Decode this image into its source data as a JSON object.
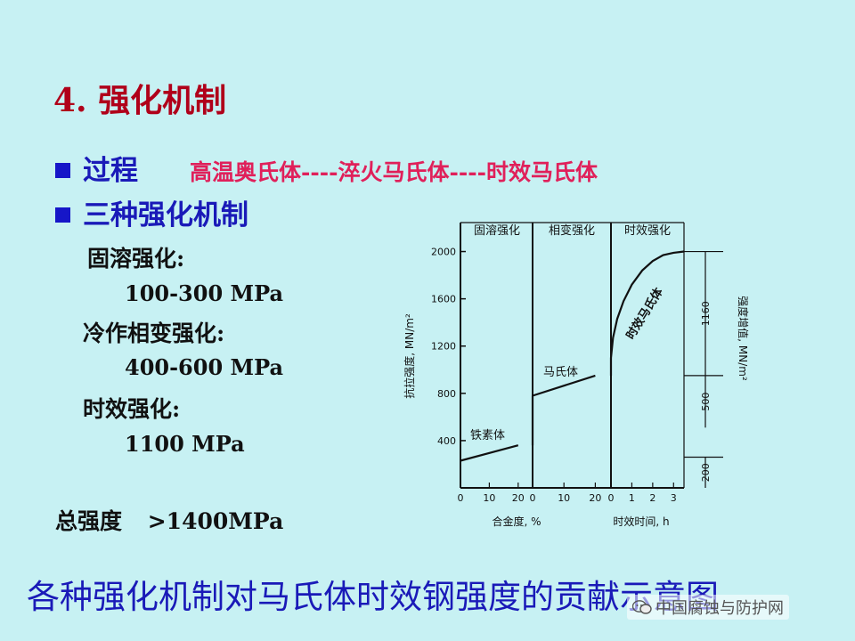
{
  "slide": {
    "title": "4. 强化机制",
    "process_label": "过程",
    "process_value": "高温奥氏体----淬火马氏体----时效马氏体",
    "mechanisms_label": "三种强化机制",
    "mechanisms": [
      {
        "name": "固溶强化:",
        "value": "100-300 MPa"
      },
      {
        "name": "冷作相变强化:",
        "value": "400-600 MPa"
      },
      {
        "name": "时效强化:",
        "value": "1100 MPa"
      }
    ],
    "total_label": "总强度",
    "total_value": ">1400MPa",
    "caption": "各种强化机制对马氏体时效钢强度的贡献示意图",
    "watermark": "中国腐蚀与防护网",
    "colors": {
      "background": "#c7f1f3",
      "title": "#b0001a",
      "bullet": "#1616c8",
      "process": "#e0205a"
    }
  },
  "chart_data": {
    "type": "line",
    "sections": [
      {
        "label": "固溶强化",
        "xlabel": "合金度, %",
        "x_ticks": [
          "0",
          "10",
          "20"
        ]
      },
      {
        "label": "相变强化",
        "xlabel": "",
        "x_ticks": [
          "0",
          "10",
          "20"
        ]
      },
      {
        "label": "时效强化",
        "xlabel": "时效时间, h",
        "x_ticks": [
          "0",
          "1",
          "2",
          "3"
        ]
      }
    ],
    "ylabel": "抗拉强度, MN/m²",
    "y_ticks": [
      400,
      800,
      1200,
      1600,
      2000
    ],
    "ylim": [
      0,
      2200
    ],
    "series": [
      {
        "name": "铁素体",
        "section": 0,
        "x": [
          0,
          20
        ],
        "y": [
          230,
          360
        ]
      },
      {
        "name": "马氏体",
        "section": 1,
        "x": [
          0,
          20
        ],
        "y": [
          780,
          950
        ]
      },
      {
        "name": "时效马氏体",
        "section": 2,
        "x": [
          0,
          0.1,
          0.3,
          0.6,
          1.0,
          1.5,
          2.0,
          2.5,
          3.0,
          3.5
        ],
        "y": [
          1100,
          1270,
          1430,
          1580,
          1720,
          1840,
          1920,
          1970,
          1990,
          2000
        ]
      }
    ],
    "right_axis_label": "强度增值, MN/m²",
    "increments": [
      "200",
      "500",
      "1160"
    ]
  }
}
